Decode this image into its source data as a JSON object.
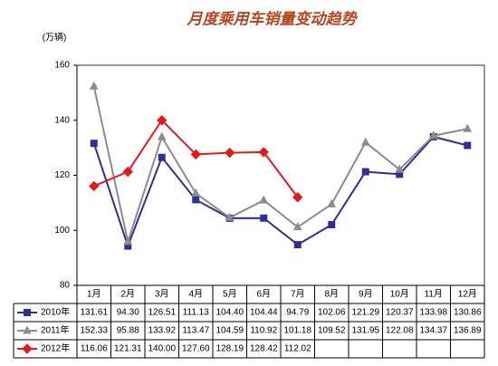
{
  "chart_data": {
    "type": "line",
    "title": "月度乘用车销量变动趋势",
    "y_label": "(万辆)",
    "categories": [
      "1月",
      "2月",
      "3月",
      "4月",
      "5月",
      "6月",
      "7月",
      "8月",
      "9月",
      "10月",
      "11月",
      "12月"
    ],
    "ylim": [
      80,
      160
    ],
    "yticks": [
      80,
      100,
      120,
      140,
      160
    ],
    "grid": false,
    "series": [
      {
        "name": "2010年",
        "color": "#2e3192",
        "marker": "square",
        "values": [
          131.61,
          94.3,
          126.51,
          111.13,
          104.4,
          104.44,
          94.79,
          102.06,
          121.29,
          120.37,
          133.98,
          130.86
        ],
        "value_labels": [
          "131.61",
          "94.30",
          "126.51",
          "111.13",
          "104.40",
          "104.44",
          "94.79",
          "102.06",
          "121.29",
          "120.37",
          "133.98",
          "130.86"
        ]
      },
      {
        "name": "2011年",
        "color": "#8c8c8c",
        "marker": "triangle",
        "values": [
          152.33,
          95.88,
          133.92,
          113.47,
          104.59,
          110.92,
          101.18,
          109.52,
          131.95,
          122.08,
          134.37,
          136.89
        ],
        "value_labels": [
          "152.33",
          "95.88",
          "133.92",
          "113.47",
          "104.59",
          "110.92",
          "101.18",
          "109.52",
          "131.95",
          "122.08",
          "134.37",
          "136.89"
        ]
      },
      {
        "name": "2012年",
        "color": "#e31a1c",
        "marker": "diamond",
        "values": [
          116.06,
          121.31,
          140.0,
          127.6,
          128.19,
          128.42,
          112.02,
          null,
          null,
          null,
          null,
          null
        ],
        "value_labels": [
          "116.06",
          "121.31",
          "140.00",
          "127.60",
          "128.19",
          "128.42",
          "112.02",
          null,
          null,
          null,
          null,
          null
        ]
      }
    ]
  }
}
